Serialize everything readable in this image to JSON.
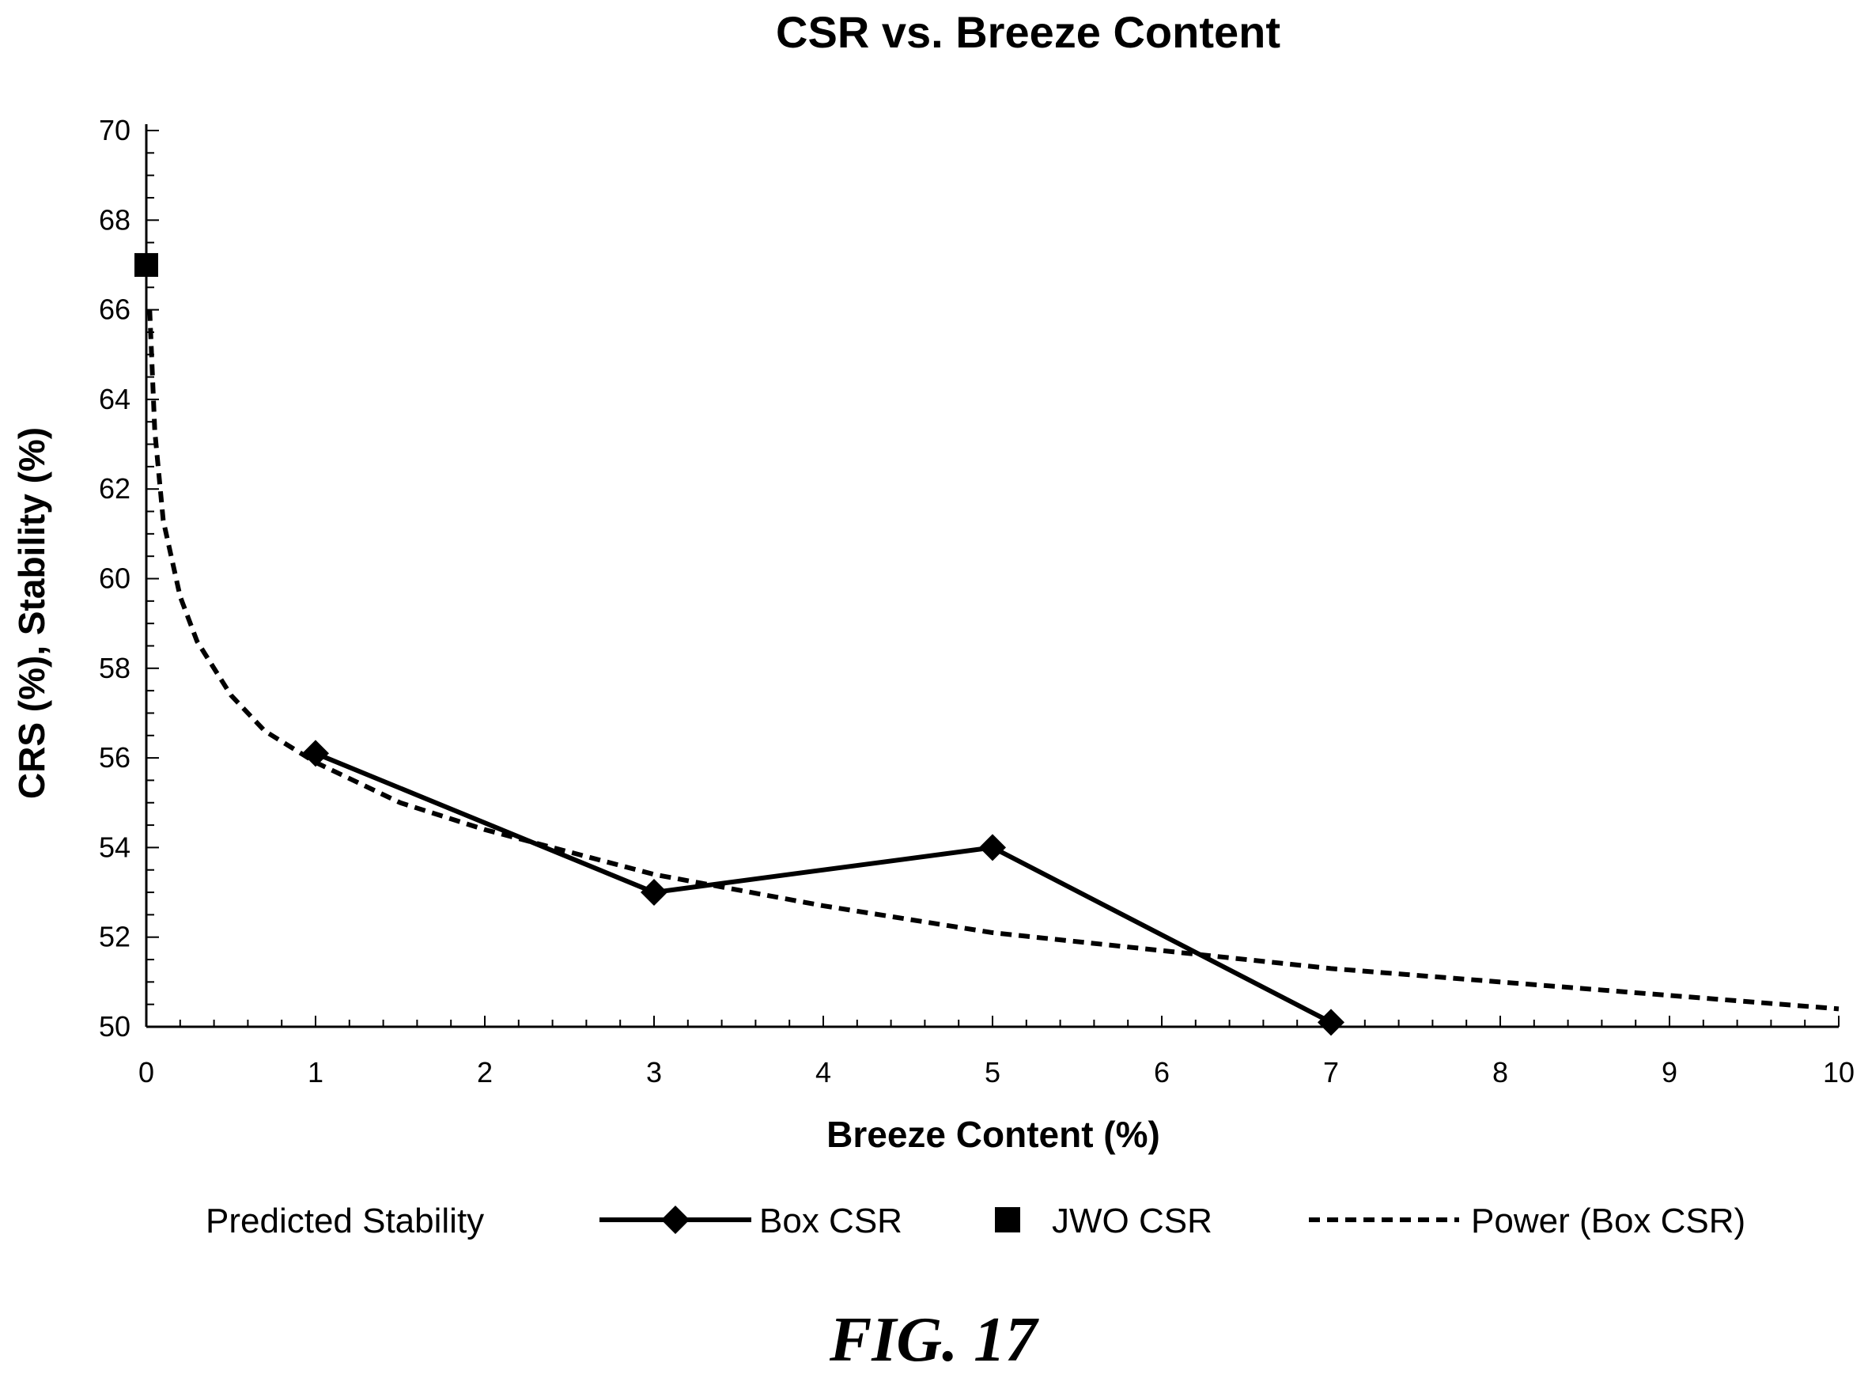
{
  "chart_data": {
    "type": "line",
    "title": "CSR vs. Breeze Content",
    "xlabel": "Breeze Content (%)",
    "ylabel": "CRS (%), Stability (%)",
    "xlim": [
      0,
      10
    ],
    "ylim": [
      50,
      70
    ],
    "x_ticks": [
      "0",
      "1",
      "2",
      "3",
      "4",
      "5",
      "6",
      "7",
      "8",
      "9",
      "10"
    ],
    "y_ticks": [
      "50",
      "52",
      "54",
      "56",
      "58",
      "60",
      "62",
      "64",
      "66",
      "68",
      "70"
    ],
    "grid": false,
    "legend_position": "bottom",
    "series": [
      {
        "name": "Box CSR",
        "style": "solid-diamond",
        "x": [
          1,
          3,
          5,
          7
        ],
        "y": [
          56.1,
          53.0,
          54.0,
          50.1
        ]
      },
      {
        "name": "JWO CSR",
        "style": "square-marker",
        "x": [
          0
        ],
        "y": [
          67.0
        ]
      },
      {
        "name": "Power (Box CSR)",
        "style": "dashed",
        "x": [
          0.02,
          0.05,
          0.1,
          0.2,
          0.3,
          0.5,
          0.7,
          1,
          1.5,
          2,
          2.5,
          3,
          4,
          5,
          6,
          7,
          8,
          9,
          10
        ],
        "y": [
          66.0,
          63.3,
          61.3,
          59.6,
          58.6,
          57.4,
          56.6,
          55.9,
          55.0,
          54.4,
          53.9,
          53.4,
          52.7,
          52.1,
          51.7,
          51.3,
          51.0,
          50.7,
          50.4
        ]
      }
    ],
    "legend": [
      {
        "label": "Predicted Stability",
        "symbol": "none"
      },
      {
        "label": "Box CSR",
        "symbol": "line-diamond"
      },
      {
        "label": "JWO CSR",
        "symbol": "square"
      },
      {
        "label": "Power (Box CSR)",
        "symbol": "dashed"
      }
    ],
    "colors": {
      "ink": "#000000",
      "background": "#ffffff"
    }
  },
  "caption": "FIG. 17"
}
